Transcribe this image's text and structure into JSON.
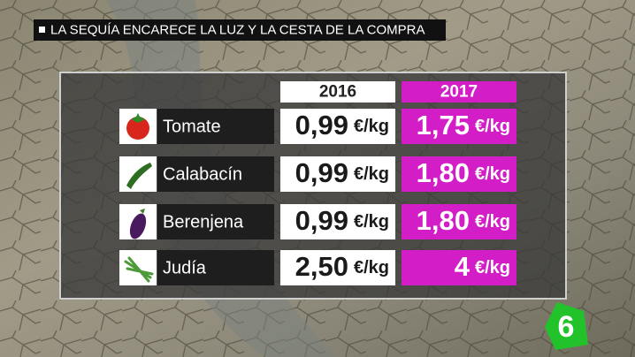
{
  "header": {
    "title": "LA SEQUÍA ENCARECE LA LUZ Y LA CESTA DE LA COMPRA"
  },
  "table": {
    "columns": [
      "2016",
      "2017"
    ],
    "rows": [
      {
        "name": "Tomate",
        "price_2016": "0,99",
        "unit_2016": "€/kg",
        "price_2017": "1,75",
        "unit_2017": "€/kg"
      },
      {
        "name": "Calabacín",
        "price_2016": "0,99",
        "unit_2016": "€/kg",
        "price_2017": "1,80",
        "unit_2017": "€/kg"
      },
      {
        "name": "Berenjena",
        "price_2016": "0,99",
        "unit_2016": "€/kg",
        "price_2017": "1,80",
        "unit_2017": "€/kg"
      },
      {
        "name": "Judía",
        "price_2016": "2,50",
        "unit_2016": "€/kg",
        "price_2017": "4",
        "unit_2017": "€/kg"
      }
    ]
  }
}
